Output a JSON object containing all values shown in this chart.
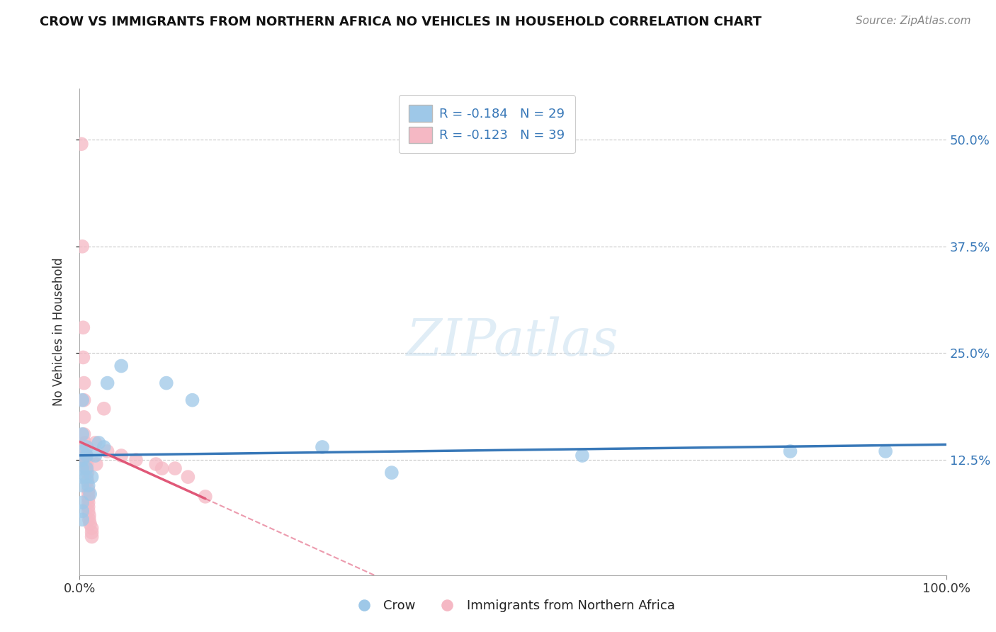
{
  "title": "CROW VS IMMIGRANTS FROM NORTHERN AFRICA NO VEHICLES IN HOUSEHOLD CORRELATION CHART",
  "source": "Source: ZipAtlas.com",
  "ylabel": "No Vehicles in Household",
  "yticks_labels": [
    "12.5%",
    "25.0%",
    "37.5%",
    "50.0%"
  ],
  "ytick_vals": [
    0.125,
    0.25,
    0.375,
    0.5
  ],
  "xlim": [
    0,
    1.0
  ],
  "ylim": [
    -0.01,
    0.56
  ],
  "xtick_vals": [
    0.0,
    1.0
  ],
  "xtick_labels": [
    "0.0%",
    "100.0%"
  ],
  "legend1_label": "R = -0.184   N = 29",
  "legend2_label": "R = -0.123   N = 39",
  "legend_bottom_label1": "Crow",
  "legend_bottom_label2": "Immigrants from Northern Africa",
  "crow_color": "#9ec8e8",
  "immig_color": "#f5b8c4",
  "crow_line_color": "#3878b8",
  "immig_line_color": "#e05878",
  "watermark": "ZIPatlas",
  "crow_scatter": [
    [
      0.003,
      0.195
    ],
    [
      0.003,
      0.155
    ],
    [
      0.003,
      0.135
    ],
    [
      0.003,
      0.125
    ],
    [
      0.003,
      0.115
    ],
    [
      0.003,
      0.105
    ],
    [
      0.003,
      0.095
    ],
    [
      0.003,
      0.075
    ],
    [
      0.003,
      0.065
    ],
    [
      0.003,
      0.055
    ],
    [
      0.008,
      0.14
    ],
    [
      0.008,
      0.13
    ],
    [
      0.008,
      0.115
    ],
    [
      0.008,
      0.105
    ],
    [
      0.01,
      0.095
    ],
    [
      0.012,
      0.085
    ],
    [
      0.014,
      0.105
    ],
    [
      0.018,
      0.13
    ],
    [
      0.022,
      0.145
    ],
    [
      0.028,
      0.14
    ],
    [
      0.032,
      0.215
    ],
    [
      0.048,
      0.235
    ],
    [
      0.1,
      0.215
    ],
    [
      0.13,
      0.195
    ],
    [
      0.28,
      0.14
    ],
    [
      0.36,
      0.11
    ],
    [
      0.58,
      0.13
    ],
    [
      0.82,
      0.135
    ],
    [
      0.93,
      0.135
    ]
  ],
  "immig_scatter": [
    [
      0.002,
      0.495
    ],
    [
      0.003,
      0.375
    ],
    [
      0.004,
      0.28
    ],
    [
      0.004,
      0.245
    ],
    [
      0.005,
      0.215
    ],
    [
      0.005,
      0.195
    ],
    [
      0.005,
      0.175
    ],
    [
      0.005,
      0.155
    ],
    [
      0.006,
      0.145
    ],
    [
      0.006,
      0.135
    ],
    [
      0.007,
      0.13
    ],
    [
      0.007,
      0.125
    ],
    [
      0.008,
      0.12
    ],
    [
      0.008,
      0.115
    ],
    [
      0.009,
      0.11
    ],
    [
      0.009,
      0.1
    ],
    [
      0.01,
      0.09
    ],
    [
      0.01,
      0.085
    ],
    [
      0.01,
      0.08
    ],
    [
      0.01,
      0.075
    ],
    [
      0.01,
      0.07
    ],
    [
      0.01,
      0.065
    ],
    [
      0.011,
      0.06
    ],
    [
      0.011,
      0.055
    ],
    [
      0.012,
      0.05
    ],
    [
      0.014,
      0.045
    ],
    [
      0.014,
      0.04
    ],
    [
      0.014,
      0.035
    ],
    [
      0.018,
      0.145
    ],
    [
      0.019,
      0.12
    ],
    [
      0.028,
      0.185
    ],
    [
      0.032,
      0.135
    ],
    [
      0.048,
      0.13
    ],
    [
      0.065,
      0.125
    ],
    [
      0.088,
      0.12
    ],
    [
      0.095,
      0.115
    ],
    [
      0.11,
      0.115
    ],
    [
      0.125,
      0.105
    ],
    [
      0.145,
      0.082
    ]
  ]
}
